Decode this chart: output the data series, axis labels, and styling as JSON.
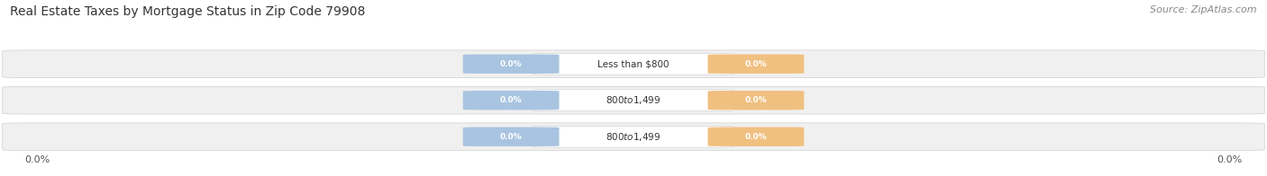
{
  "title": "Real Estate Taxes by Mortgage Status in Zip Code 79908",
  "source": "Source: ZipAtlas.com",
  "categories": [
    "Less than $800",
    "$800 to $1,499",
    "$800 to $1,499"
  ],
  "without_mortgage": [
    0.0,
    0.0,
    0.0
  ],
  "with_mortgage": [
    0.0,
    0.0,
    0.0
  ],
  "bar_color_without": "#a8c4e0",
  "bar_color_with": "#f0c080",
  "bar_bg_light": "#f0f0f0",
  "bar_bg_dark": "#e4e4e4",
  "title_fontsize": 10,
  "source_fontsize": 8,
  "bg_color": "#ffffff",
  "tick_label_fontsize": 8,
  "legend_fontsize": 8
}
